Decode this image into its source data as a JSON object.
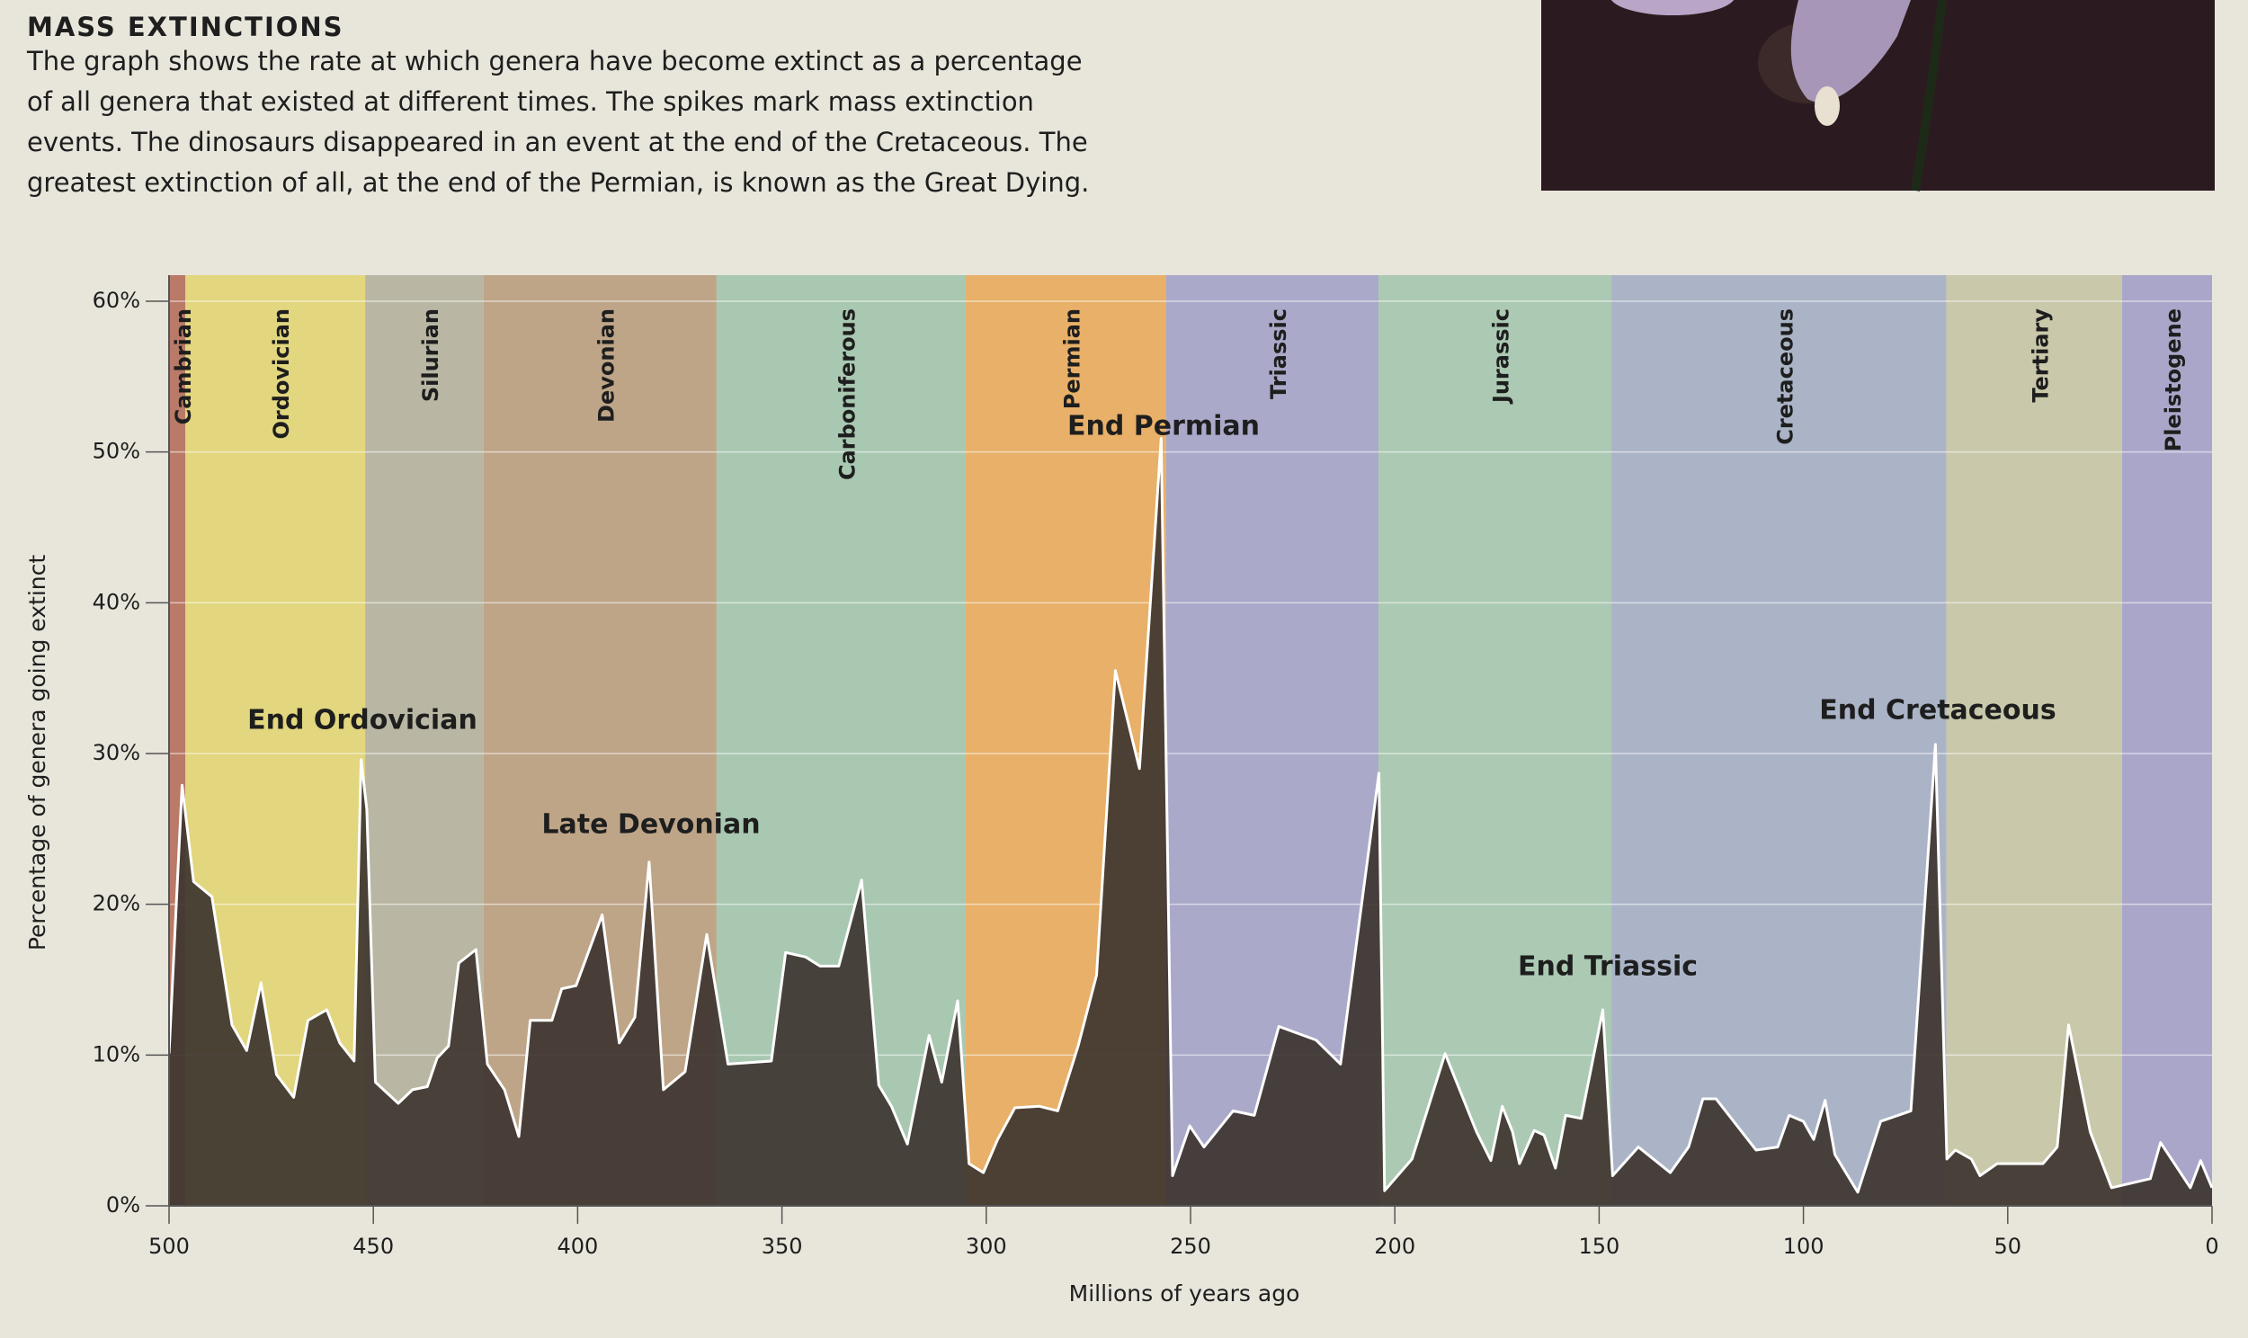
{
  "heading": "MASS EXTINCTIONS",
  "description": [
    "The graph shows the rate at which genera have become extinct as a percentage",
    "of all genera that existed at different times. The spikes mark mass extinction",
    "events. The dinosaurs disappeared in an event at the end of the Cretaceous. The",
    "greatest extinction of all, at the end of the Permian, is known as the Great Dying."
  ],
  "chart_data": {
    "type": "area",
    "y_label": "Percentage of genera going extinct",
    "x_label": "Millions of years ago",
    "xlim": [
      500,
      0
    ],
    "xticks": [
      500,
      450,
      400,
      350,
      300,
      250,
      200,
      150,
      100,
      50,
      0
    ],
    "ylim": [
      0,
      60
    ],
    "yticks": [
      {
        "value": 0,
        "label": "0%"
      },
      {
        "value": 10,
        "label": "10%"
      },
      {
        "value": 20,
        "label": "20%"
      },
      {
        "value": 30,
        "label": "30%"
      },
      {
        "value": 40,
        "label": "40%"
      },
      {
        "value": 50,
        "label": "50%"
      },
      {
        "value": 60,
        "label": "60%"
      }
    ],
    "grid": true,
    "color": "#3e3530",
    "line_color": "#ffffff",
    "periods": [
      {
        "name": "Cambrian",
        "start": 500,
        "end": 496,
        "color": "#b97a68"
      },
      {
        "name": "Ordovician",
        "start": 496,
        "end": 452,
        "color": "#e2d67e"
      },
      {
        "name": "Silurian",
        "start": 452,
        "end": 423,
        "color": "#b9b7a3"
      },
      {
        "name": "Devonian",
        "start": 423,
        "end": 366,
        "color": "#bea588"
      },
      {
        "name": "Carboniferous",
        "start": 366,
        "end": 305,
        "color": "#a9c8b2"
      },
      {
        "name": "Permian",
        "start": 305,
        "end": 256,
        "color": "#e8b068"
      },
      {
        "name": "Triassic",
        "start": 256,
        "end": 204,
        "color": "#aaa9c9"
      },
      {
        "name": "Jurassic",
        "start": 204,
        "end": 147,
        "color": "#abc9b3"
      },
      {
        "name": "Cretaceous",
        "start": 147,
        "end": 65,
        "color": "#abb4c7"
      },
      {
        "name": "Tertiary",
        "start": 65,
        "end": 22,
        "color": "#c9c8aa"
      },
      {
        "name": "Pleistogene",
        "start": 22,
        "end": 0,
        "color": "#aaa6c9"
      }
    ],
    "x": [
      500,
      496.8,
      494,
      489.5,
      484.6,
      481,
      477.5,
      473.7,
      469.5,
      466,
      461.4,
      458.2,
      454.7,
      453,
      451.6,
      449.5,
      443.9,
      440.4,
      436.8,
      434.4,
      431.6,
      429.1,
      424.9,
      422.1,
      417.9,
      414.4,
      411.6,
      406.3,
      403.9,
      400.4,
      394,
      389.8,
      386,
      382.5,
      379,
      373.7,
      368.4,
      363.2,
      352.6,
      349.1,
      344.2,
      340.7,
      336.1,
      330.5,
      326.3,
      323.2,
      319.3,
      314,
      310.9,
      307,
      304.2,
      300.7,
      297.2,
      293,
      287,
      282.5,
      277.5,
      273,
      268.4,
      262.5,
      257.2,
      254.4,
      250.2,
      246.7,
      239.6,
      234.4,
      228.4,
      219.3,
      213.3,
      203.9,
      202.5,
      195.8,
      187.7,
      180,
      176.5,
      173.7,
      171.2,
      169.5,
      165.9,
      163.5,
      160.7,
      158.2,
      154.4,
      149.1,
      146.7,
      140.4,
      132.6,
      128.1,
      124.6,
      121.4,
      111.6,
      106.3,
      103.5,
      100,
      97.5,
      94.7,
      92.3,
      86.7,
      81.1,
      73.7,
      67.7,
      64.9,
      62.8,
      58.9,
      56.8,
      52.6,
      41.4,
      37.9,
      35.1,
      29.8,
      24.6,
      15.1,
      12.6,
      5.3,
      2.8,
      0
    ],
    "values": [
      10.1,
      27.9,
      21.5,
      20.5,
      12,
      10.3,
      14.8,
      8.7,
      7.2,
      12.3,
      13,
      10.8,
      9.6,
      29.6,
      26.3,
      8.2,
      6.8,
      7.7,
      7.9,
      9.8,
      10.6,
      16.1,
      17,
      9.4,
      7.7,
      4.6,
      12.3,
      12.3,
      14.4,
      14.6,
      19.3,
      10.8,
      12.5,
      22.8,
      7.7,
      8.9,
      18,
      9.4,
      9.6,
      16.8,
      16.5,
      15.9,
      15.9,
      21.6,
      8,
      6.6,
      4.1,
      11.3,
      8.2,
      13.6,
      2.8,
      2.2,
      4.4,
      6.5,
      6.6,
      6.3,
      10.6,
      15.3,
      35.5,
      29,
      50.9,
      2,
      5.3,
      3.9,
      6.3,
      6,
      11.9,
      11,
      9.4,
      28.7,
      1,
      3.1,
      10.1,
      4.9,
      3,
      6.6,
      4.9,
      2.8,
      5,
      4.7,
      2.5,
      6,
      5.8,
      13,
      2,
      3.9,
      2.2,
      3.9,
      7.1,
      7.1,
      3.7,
      3.9,
      6,
      5.6,
      4.4,
      7,
      3.4,
      0.9,
      5.6,
      6.3,
      30.6,
      3.1,
      3.7,
      3.1,
      2,
      2.8,
      2.8,
      3.9,
      12,
      4.9,
      1.2,
      1.8,
      4.2,
      1.2,
      3,
      1.2
    ],
    "annotations": [
      "End Ordovician",
      "Late Devonian",
      "End Permian",
      "End Triassic",
      "End Cretaceous"
    ]
  }
}
